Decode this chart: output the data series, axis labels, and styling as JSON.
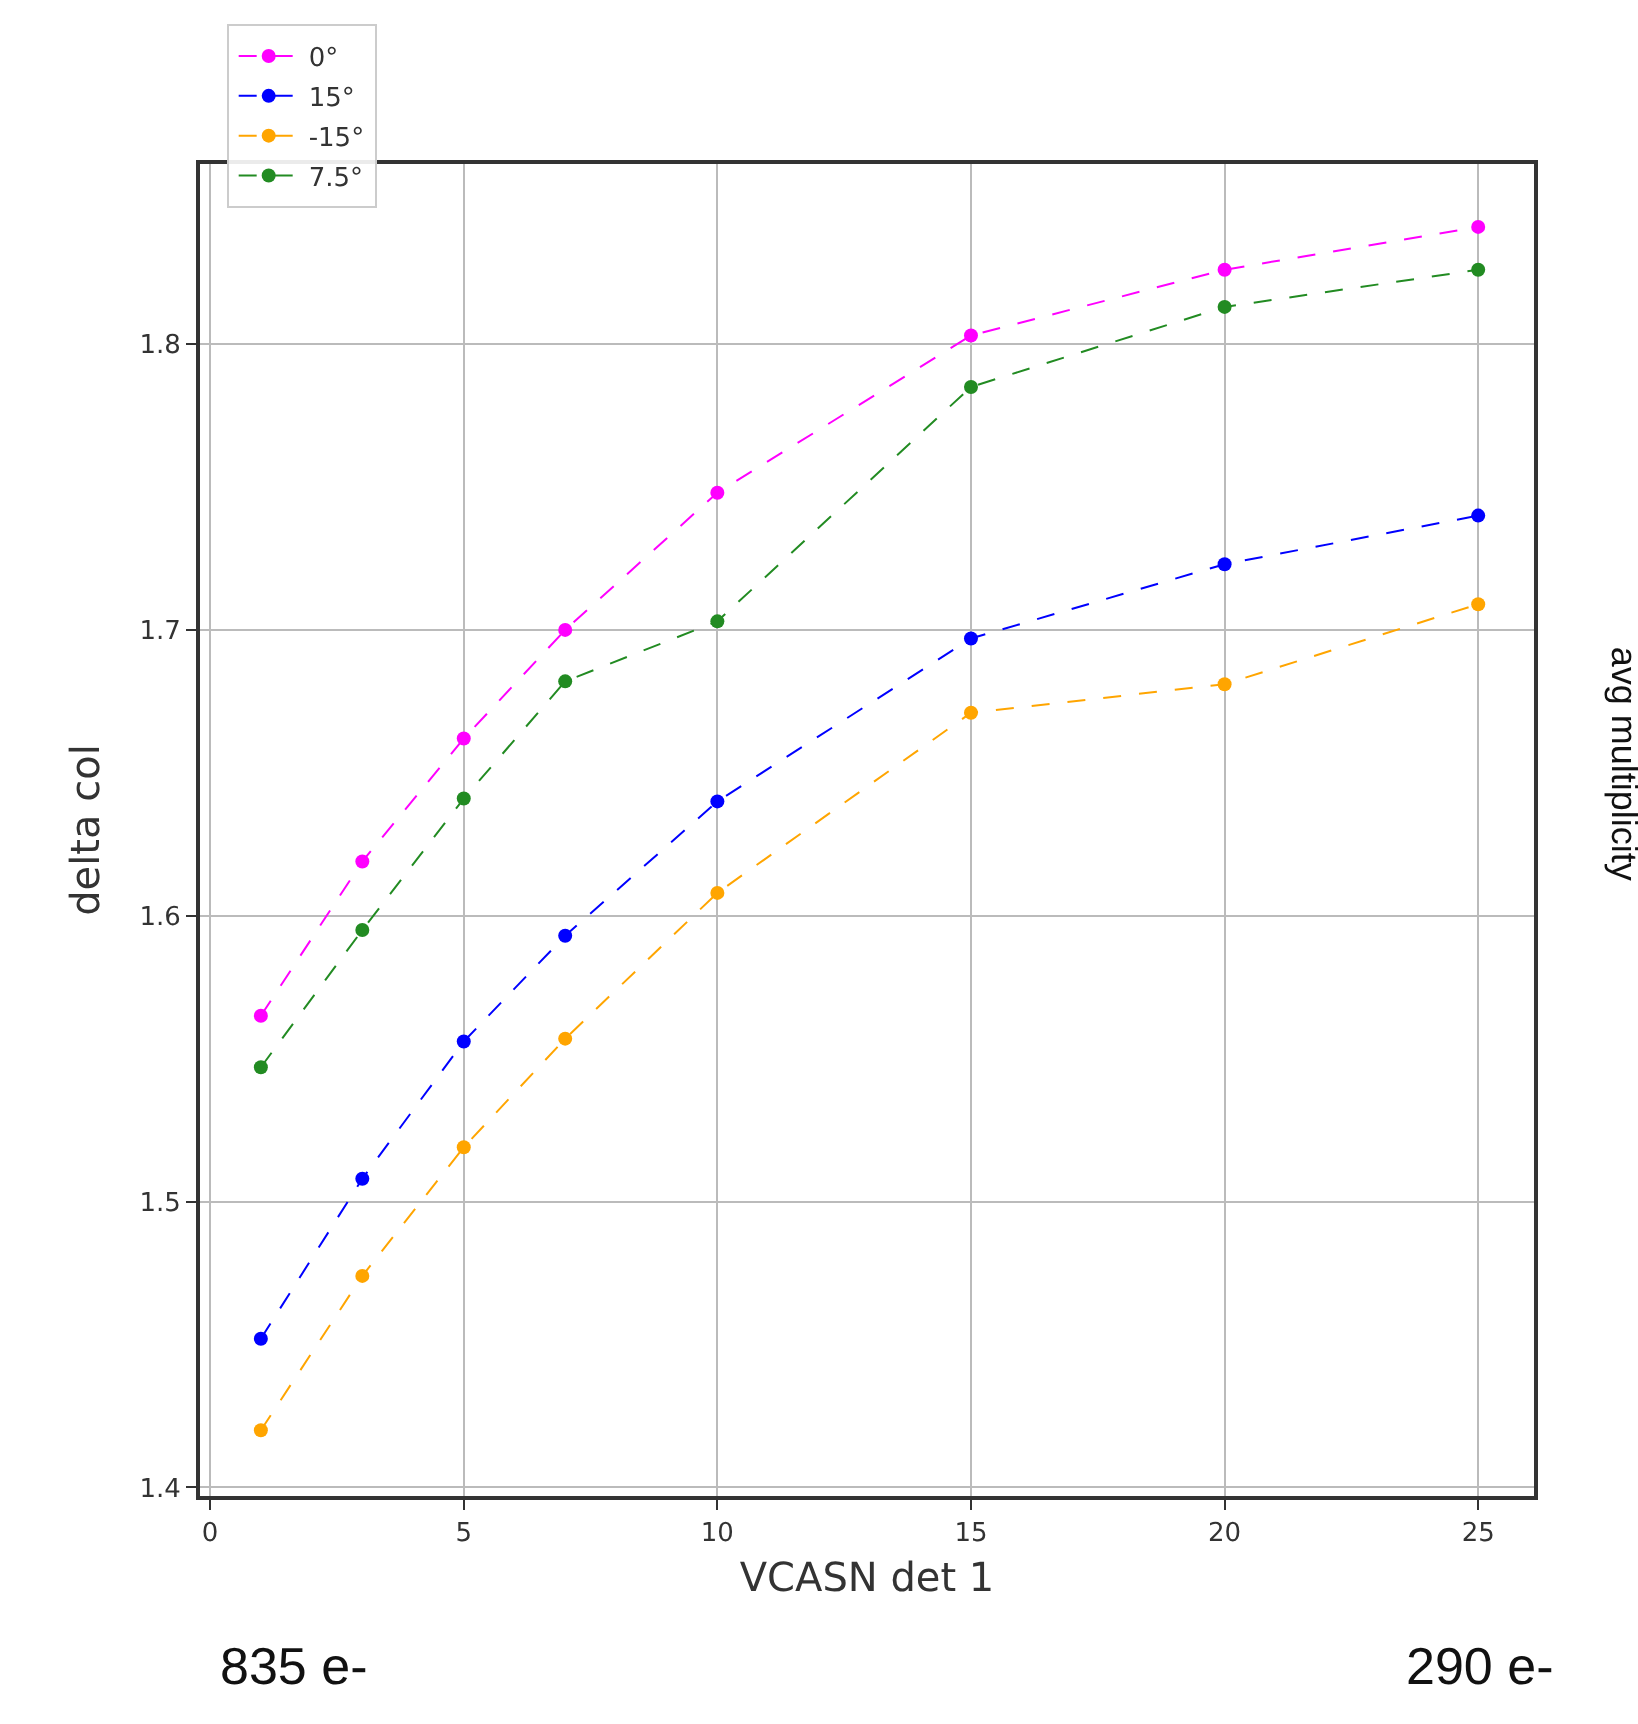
{
  "chart_data": {
    "type": "line",
    "xlabel": "VCASN det 1",
    "ylabel": "delta col",
    "x": [
      1,
      3,
      5,
      7,
      10,
      15,
      20,
      25
    ],
    "series": [
      {
        "name": "0°",
        "color": "#ff00ff",
        "values": [
          1.565,
          1.619,
          1.662,
          1.7,
          1.748,
          1.803,
          1.826,
          1.841
        ]
      },
      {
        "name": "15°",
        "color": "#0000ff",
        "values": [
          1.452,
          1.508,
          1.556,
          1.593,
          1.64,
          1.697,
          1.723,
          1.74
        ]
      },
      {
        "name": "-15°",
        "color": "#ffa500",
        "values": [
          1.42,
          1.474,
          1.519,
          1.557,
          1.608,
          1.671,
          1.681,
          1.709
        ]
      },
      {
        "name": "7.5°",
        "color": "#228b22",
        "values": [
          1.547,
          1.595,
          1.641,
          1.682,
          1.703,
          1.785,
          1.813,
          1.826
        ]
      }
    ],
    "xlim": [
      -0.2,
      26.1
    ],
    "xticks": [
      0,
      5,
      10,
      15,
      20,
      25
    ],
    "ylim": [
      1.397,
      1.863
    ],
    "yticks": [
      1.4,
      1.5,
      1.6,
      1.7,
      1.8
    ],
    "grid": true,
    "legend": "top left",
    "marker": "circle",
    "line_style": "dashed",
    "annotations": [
      "835 e-",
      "290 e-",
      "avg multiplicity"
    ]
  }
}
